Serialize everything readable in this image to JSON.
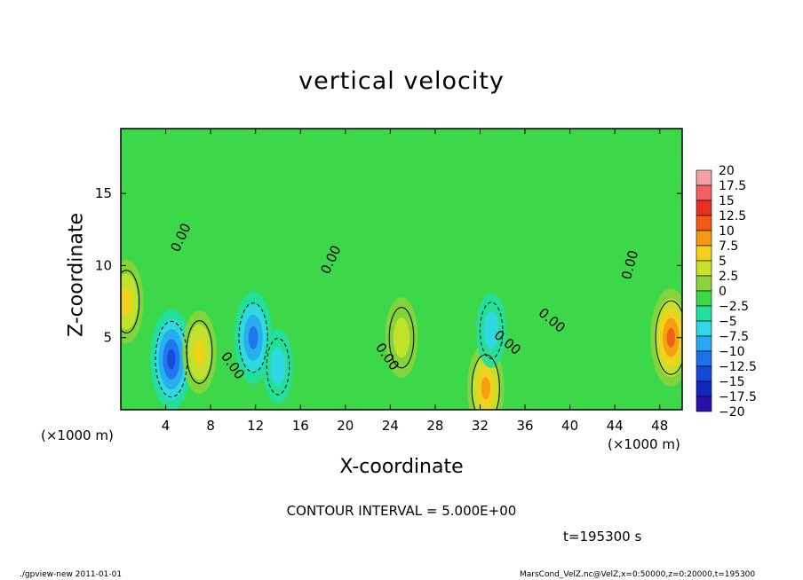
{
  "chart_data": {
    "type": "heatmap",
    "title": "vertical velocity",
    "xlabel": "X-coordinate",
    "ylabel": "Z-coordinate",
    "x_unit": "(×1000 m)",
    "y_unit": "(×1000 m)",
    "xlim": [
      0,
      50
    ],
    "ylim": [
      0,
      19.5
    ],
    "x_ticks": [
      4,
      8,
      12,
      16,
      20,
      24,
      28,
      32,
      36,
      40,
      44,
      48
    ],
    "y_ticks": [
      5,
      10,
      15
    ],
    "colorbar_labels": [
      "20",
      "17.5",
      "15",
      "12.5",
      "10",
      "7.5",
      "5",
      "2.5",
      "0",
      "-2.5",
      "-5",
      "-7.5",
      "-10",
      "-12.5",
      "-15",
      "-17.5",
      "-20"
    ],
    "colorbar_colors": [
      "#f4a0a8",
      "#f06060",
      "#e83020",
      "#f05a14",
      "#f49a10",
      "#f4d01a",
      "#c8e22a",
      "#8ad43a",
      "#3cd84a",
      "#20e0a0",
      "#30d8e8",
      "#28a8f0",
      "#1e70ec",
      "#1448d8",
      "#1426c0",
      "#2a10a8",
      "#5a1aa0"
    ],
    "contour_label": "0.00",
    "contour_interval": "CONTOUR INTERVAL = 5.000E+00",
    "features": [
      {
        "kind": "min",
        "x": 4.5,
        "z": 3.5,
        "value": -13
      },
      {
        "kind": "max",
        "x": 7.0,
        "z": 4.0,
        "value": 7
      },
      {
        "kind": "min",
        "x": 11.8,
        "z": 5.0,
        "value": -10
      },
      {
        "kind": "min",
        "x": 14.0,
        "z": 3.0,
        "value": -4
      },
      {
        "kind": "max",
        "x": 25.0,
        "z": 5.0,
        "value": 6
      },
      {
        "kind": "max",
        "x": 32.5,
        "z": 1.5,
        "value": 9
      },
      {
        "kind": "min",
        "x": 33.0,
        "z": 5.5,
        "value": -4
      },
      {
        "kind": "max",
        "x": 49.0,
        "z": 5.0,
        "value": 12
      },
      {
        "kind": "max",
        "x": 0.5,
        "z": 7.5,
        "value": 7
      }
    ]
  },
  "time_label": "t=195300 s",
  "footer_left": "./gpview-new  2011-01-01",
  "footer_right": "MarsCond_VelZ.nc@VelZ,x=0:50000,z=0:20000,t=195300"
}
